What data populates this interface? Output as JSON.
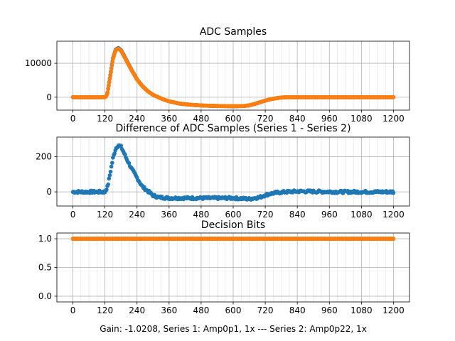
{
  "figure": {
    "footer": "Gain: -1.0208, Series 1: Amp0p1, 1x --- Series 2: Amp0p22, 1x",
    "colors": {
      "series1": "#1f77b4",
      "series2": "#ff7f0e",
      "grid": "#b0b0b0"
    }
  },
  "chart_data": [
    {
      "type": "scatter",
      "title": "ADC Samples",
      "xlabel": "",
      "ylabel": "",
      "xlim": [
        -60,
        1260
      ],
      "ylim": [
        -3800,
        16500
      ],
      "xticks": [
        0,
        120,
        240,
        360,
        480,
        600,
        720,
        840,
        960,
        1080,
        1200
      ],
      "xtick_labels": [
        "0",
        "120",
        "240",
        "360",
        "480",
        "600",
        "720",
        "840",
        "960",
        "1080",
        "1200"
      ],
      "yticks": [
        0,
        10000
      ],
      "ytick_labels": [
        "0",
        "10000"
      ],
      "grid": true,
      "series": [
        {
          "name": "Series 1",
          "color": "#1f77b4",
          "x": [
            0,
            100,
            120,
            125,
            130,
            140,
            150,
            160,
            170,
            180,
            190,
            200,
            220,
            240,
            260,
            280,
            300,
            320,
            340,
            360,
            400,
            450,
            500,
            550,
            600,
            640,
            660,
            680,
            700,
            720,
            740,
            760,
            780,
            800,
            820,
            840,
            900,
            1000,
            1100,
            1200
          ],
          "y": [
            0,
            0,
            0,
            300,
            1500,
            6500,
            11500,
            14000,
            14500,
            13900,
            12500,
            11000,
            8000,
            5300,
            3300,
            1800,
            700,
            0,
            -700,
            -1200,
            -1900,
            -2300,
            -2500,
            -2600,
            -2650,
            -2600,
            -2400,
            -2000,
            -1500,
            -1000,
            -600,
            -300,
            -100,
            0,
            0,
            0,
            0,
            0,
            0,
            0
          ]
        },
        {
          "name": "Series 2",
          "color": "#ff7f0e",
          "x": [
            0,
            100,
            120,
            125,
            130,
            140,
            150,
            160,
            170,
            180,
            190,
            200,
            220,
            240,
            260,
            280,
            300,
            320,
            340,
            360,
            400,
            450,
            500,
            550,
            600,
            640,
            660,
            680,
            700,
            720,
            740,
            760,
            780,
            800,
            820,
            840,
            900,
            1000,
            1100,
            1200
          ],
          "y": [
            0,
            0,
            0,
            250,
            1400,
            6300,
            11300,
            13800,
            14300,
            13700,
            12300,
            10800,
            7900,
            5200,
            3250,
            1780,
            700,
            0,
            -690,
            -1180,
            -1880,
            -2280,
            -2480,
            -2580,
            -2630,
            -2580,
            -2380,
            -1980,
            -1480,
            -990,
            -590,
            -300,
            -100,
            0,
            0,
            0,
            0,
            0,
            0,
            0
          ]
        }
      ]
    },
    {
      "type": "scatter",
      "title": "Difference of ADC Samples (Series 1 - Series 2)",
      "xlabel": "",
      "ylabel": "",
      "xlim": [
        -60,
        1260
      ],
      "ylim": [
        -80,
        310
      ],
      "xticks": [
        0,
        120,
        240,
        360,
        480,
        600,
        720,
        840,
        960,
        1080,
        1200
      ],
      "xtick_labels": [
        "0",
        "120",
        "240",
        "360",
        "480",
        "600",
        "720",
        "840",
        "960",
        "1080",
        "1200"
      ],
      "yticks": [
        0,
        200
      ],
      "ytick_labels": [
        "0",
        "200"
      ],
      "grid": true,
      "series": [
        {
          "name": "Difference",
          "color": "#1f77b4",
          "x": [
            0,
            120,
            130,
            140,
            150,
            160,
            170,
            180,
            190,
            200,
            210,
            220,
            230,
            240,
            250,
            260,
            280,
            300,
            320,
            360,
            400,
            500,
            600,
            660,
            700,
            720,
            740,
            760,
            780,
            800,
            840,
            900,
            1000,
            1100,
            1200
          ],
          "y": [
            0,
            0,
            30,
            110,
            190,
            245,
            265,
            255,
            225,
            190,
            160,
            130,
            105,
            80,
            55,
            30,
            5,
            -20,
            -30,
            -35,
            -35,
            -35,
            -35,
            -40,
            -30,
            -18,
            -10,
            -5,
            -2,
            0,
            3,
            2,
            0,
            0,
            0
          ]
        }
      ]
    },
    {
      "type": "scatter",
      "title": "Decision Bits",
      "xlabel": "Gain: -1.0208, Series 1: Amp0p1, 1x --- Series 2: Amp0p22, 1x",
      "ylabel": "",
      "xlim": [
        -60,
        1260
      ],
      "ylim": [
        -0.1,
        1.1
      ],
      "xticks": [
        0,
        120,
        240,
        360,
        480,
        600,
        720,
        840,
        960,
        1080,
        1200
      ],
      "xtick_labels": [
        "0",
        "120",
        "240",
        "360",
        "480",
        "600",
        "720",
        "840",
        "960",
        "1080",
        "1200"
      ],
      "yticks": [
        0.0,
        0.5,
        1.0
      ],
      "ytick_labels": [
        "0.0",
        "0.5",
        "1.0"
      ],
      "grid": true,
      "series": [
        {
          "name": "Series 1",
          "color": "#1f77b4",
          "x": [
            0,
            1200
          ],
          "y": [
            1,
            1
          ]
        },
        {
          "name": "Series 2",
          "color": "#ff7f0e",
          "x": [
            0,
            1200
          ],
          "y": [
            1,
            1
          ]
        }
      ]
    }
  ]
}
